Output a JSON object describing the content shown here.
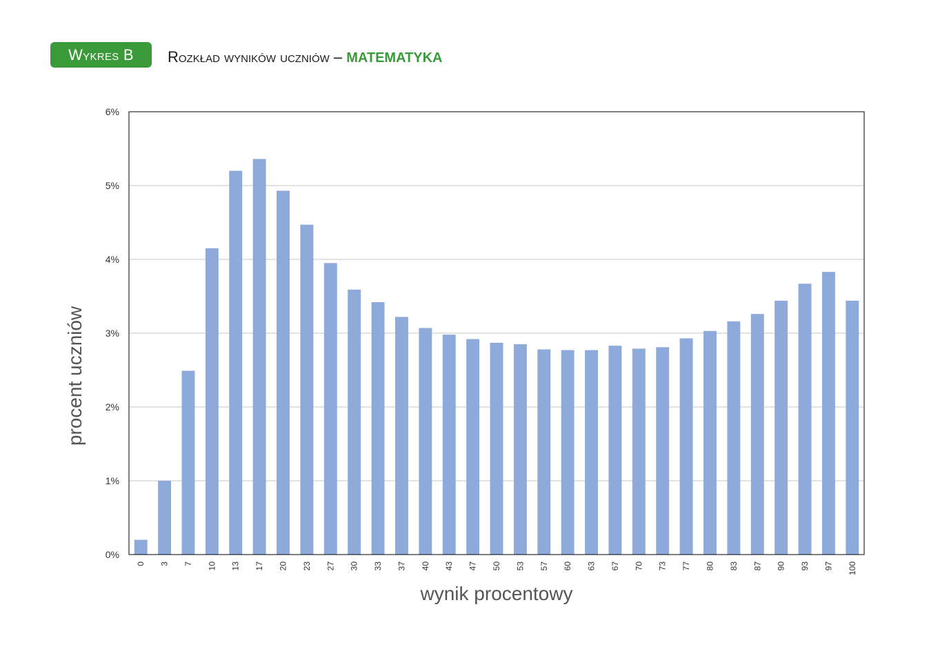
{
  "header": {
    "badge": "Wykres B",
    "title": "Rozkład wyników uczniów",
    "dash": " – ",
    "subject": "MATEMATYKA"
  },
  "colors": {
    "bar": "#8eaadb",
    "badge": "#3a9a3a",
    "grid": "#d9d9d9"
  },
  "chart_data": {
    "type": "bar",
    "xlabel": "wynik procentowy",
    "ylabel": "procent uczniów",
    "ylim": [
      0,
      6
    ],
    "y_ticks": [
      "0%",
      "1%",
      "2%",
      "3%",
      "4%",
      "5%",
      "6%"
    ],
    "grid": true,
    "categories": [
      "0",
      "3",
      "7",
      "10",
      "13",
      "17",
      "20",
      "23",
      "27",
      "30",
      "33",
      "37",
      "40",
      "43",
      "47",
      "50",
      "53",
      "57",
      "60",
      "63",
      "67",
      "70",
      "73",
      "77",
      "80",
      "83",
      "87",
      "90",
      "93",
      "97",
      "100"
    ],
    "values": [
      0.2,
      1.0,
      2.49,
      4.15,
      5.2,
      5.36,
      4.93,
      4.47,
      3.95,
      3.59,
      3.42,
      3.22,
      3.07,
      2.98,
      2.92,
      2.87,
      2.85,
      2.78,
      2.77,
      2.77,
      2.83,
      2.79,
      2.81,
      2.93,
      3.03,
      3.16,
      3.26,
      3.44,
      3.67,
      3.83,
      3.44
    ]
  }
}
